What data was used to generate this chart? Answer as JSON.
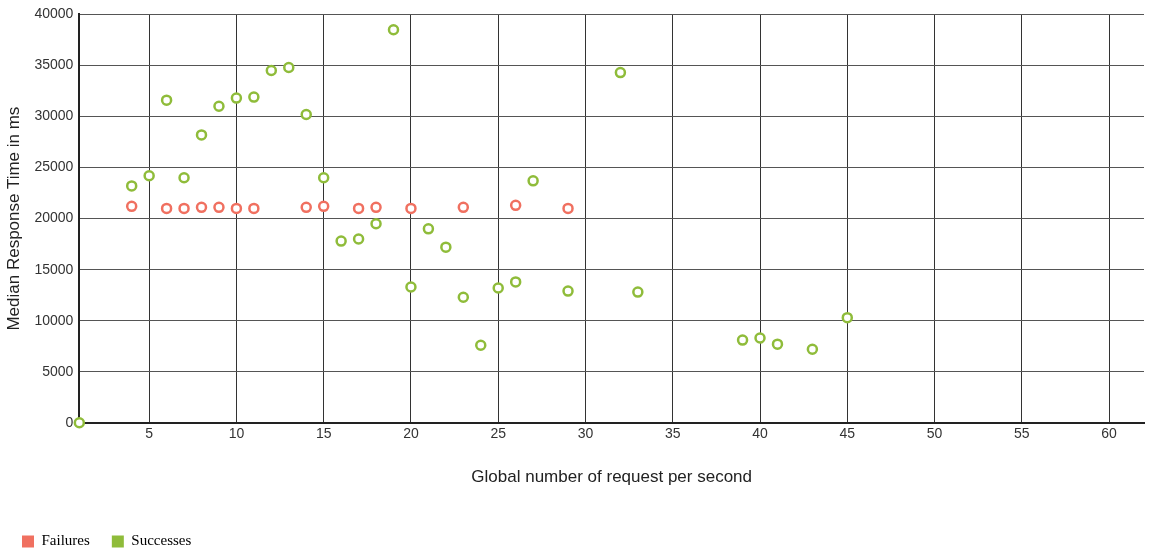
{
  "chart_data": {
    "type": "scatter",
    "xlabel": "Global number of request per second",
    "ylabel": "Median Response Time in ms",
    "xlim": [
      1,
      62
    ],
    "xticks": [
      5,
      10,
      15,
      20,
      25,
      30,
      35,
      40,
      45,
      50,
      55,
      60
    ],
    "ylim": [
      0,
      40000
    ],
    "yticks": [
      0,
      5000,
      10000,
      15000,
      20000,
      25000,
      30000,
      35000,
      40000
    ],
    "grid": true,
    "legend": "bottom left",
    "marker": "circle",
    "series": [
      {
        "name": "Failures",
        "color": "#f07060",
        "x": [
          4,
          6,
          7,
          8,
          9,
          10,
          11,
          14,
          15,
          17,
          18,
          20,
          23,
          26,
          29
        ],
        "values": [
          21200,
          21000,
          21000,
          21100,
          21100,
          21000,
          21000,
          21100,
          21200,
          21000,
          21100,
          21000,
          21100,
          21300,
          21000
        ]
      },
      {
        "name": "Successes",
        "color": "#8fbc3a",
        "x": [
          1,
          4,
          5,
          6,
          7,
          8,
          9,
          10,
          11,
          12,
          13,
          14,
          15,
          16,
          17,
          18,
          19,
          20,
          21,
          22,
          23,
          24,
          25,
          26,
          27,
          29,
          32,
          33,
          39,
          40,
          41,
          43,
          45
        ],
        "values": [
          0,
          23200,
          24200,
          31600,
          24000,
          28200,
          31000,
          31800,
          31900,
          34500,
          34800,
          30200,
          24000,
          17800,
          18000,
          19500,
          38500,
          13300,
          19000,
          17200,
          12300,
          7600,
          13200,
          13800,
          23700,
          12900,
          34300,
          12800,
          8100,
          8300,
          7700,
          7200,
          10300
        ]
      }
    ]
  }
}
